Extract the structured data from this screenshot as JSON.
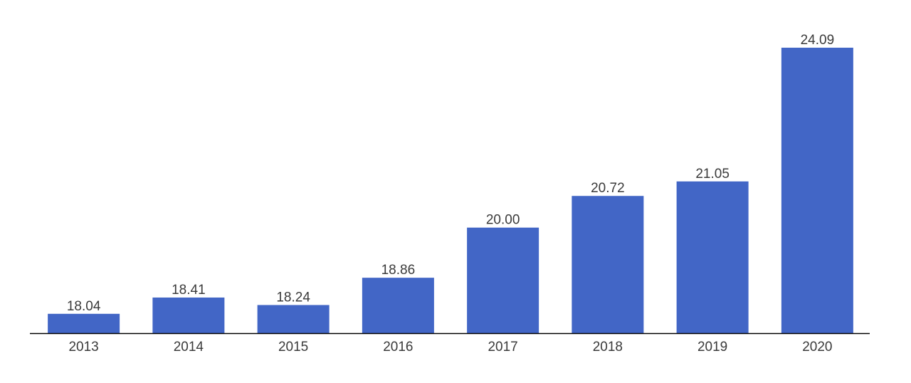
{
  "chart_data": {
    "type": "bar",
    "title": "",
    "xlabel": "",
    "ylabel": "",
    "categories": [
      "2013",
      "2014",
      "2015",
      "2016",
      "2017",
      "2018",
      "2019",
      "2020"
    ],
    "values": [
      18.04,
      18.41,
      18.24,
      18.86,
      20.0,
      20.72,
      21.05,
      24.09
    ],
    "value_labels": [
      "18.04",
      "18.41",
      "18.24",
      "18.86",
      "20.00",
      "20.72",
      "21.05",
      "24.09"
    ],
    "ylim": [
      17.6,
      24.09
    ],
    "grid": false,
    "legend": "none",
    "bar_color": "#4266c6",
    "axis_color": "#000000",
    "text_color": "#3a3a3a"
  }
}
